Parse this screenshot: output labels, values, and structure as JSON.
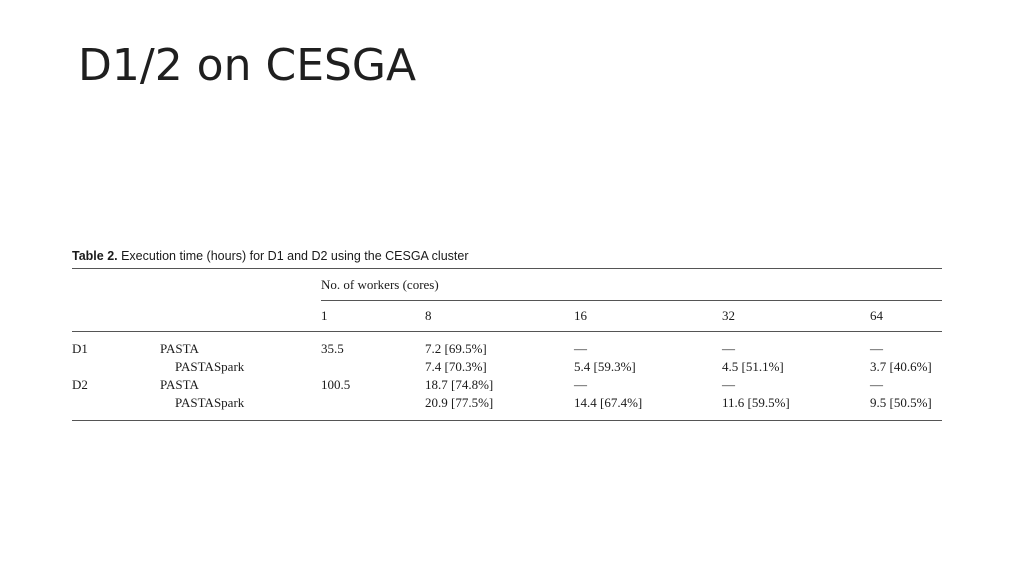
{
  "slide": {
    "title": "D1/2 on CESGA"
  },
  "table": {
    "caption_label": "Table 2.",
    "caption_text": " Execution time (hours) for D1 and D2 using the CESGA cluster",
    "group_header": "No. of workers (cores)",
    "core_counts": [
      "1",
      "8",
      "16",
      "32",
      "64"
    ],
    "rows": [
      {
        "dataset": "D1",
        "method": "PASTA",
        "cells": [
          "35.5",
          "7.2 [69.5%]",
          "—",
          "—",
          "—"
        ]
      },
      {
        "dataset": "",
        "method": "PASTASpark",
        "cells": [
          "",
          "7.4 [70.3%]",
          "5.4 [59.3%]",
          "4.5 [51.1%]",
          "3.7 [40.6%]"
        ]
      },
      {
        "dataset": "D2",
        "method": "PASTA",
        "cells": [
          "100.5",
          "18.7 [74.8%]",
          "—",
          "—",
          "—"
        ]
      },
      {
        "dataset": "",
        "method": "PASTASpark",
        "cells": [
          "",
          "20.9 [77.5%]",
          "14.4 [67.4%]",
          "11.6 [59.5%]",
          "9.5 [50.5%]"
        ]
      }
    ]
  }
}
